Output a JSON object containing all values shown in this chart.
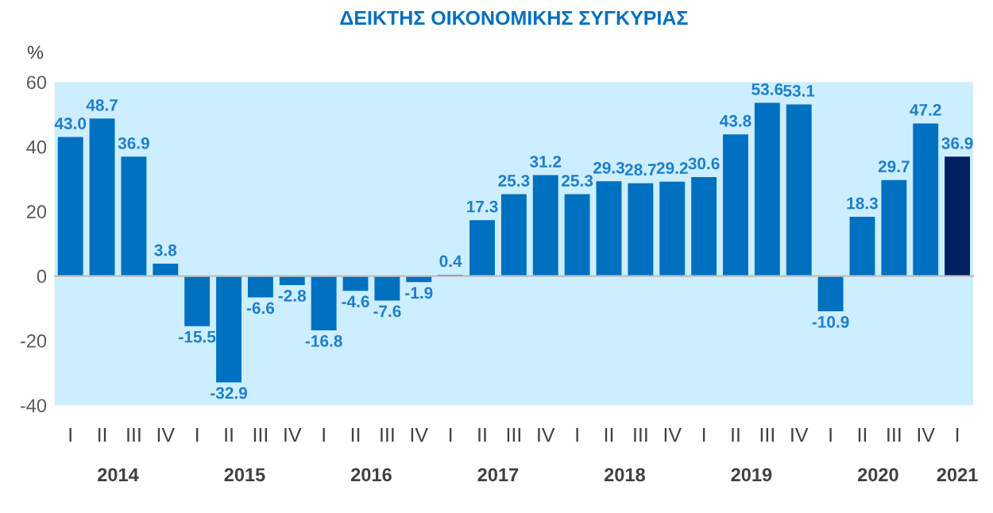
{
  "chart_data": {
    "type": "bar",
    "title": "ΔΕΙΚΤΗΣ ΟΙΚΟΝΟΜΙΚΗΣ ΣΥΓΚΥΡΙΑΣ",
    "ylabel": "%",
    "categories": [
      "I",
      "II",
      "III",
      "IV",
      "I",
      "II",
      "III",
      "IV",
      "I",
      "II",
      "III",
      "IV",
      "I",
      "II",
      "III",
      "IV",
      "I",
      "II",
      "III",
      "IV",
      "I",
      "II",
      "III",
      "IV",
      "I",
      "II",
      "III",
      "IV",
      "I"
    ],
    "values": [
      43.0,
      48.7,
      36.9,
      3.8,
      -15.5,
      -32.9,
      -6.6,
      -2.8,
      -16.8,
      -4.6,
      -7.6,
      -1.9,
      0.4,
      17.3,
      25.3,
      31.2,
      25.3,
      29.3,
      28.7,
      29.2,
      30.6,
      43.8,
      53.6,
      53.1,
      -10.9,
      18.3,
      29.7,
      47.2,
      36.9
    ],
    "colors": [
      "#0070c0",
      "#0070c0",
      "#0070c0",
      "#0070c0",
      "#0070c0",
      "#0070c0",
      "#0070c0",
      "#0070c0",
      "#0070c0",
      "#0070c0",
      "#0070c0",
      "#0070c0",
      "#0070c0",
      "#0070c0",
      "#0070c0",
      "#0070c0",
      "#0070c0",
      "#0070c0",
      "#0070c0",
      "#0070c0",
      "#0070c0",
      "#0070c0",
      "#0070c0",
      "#0070c0",
      "#0070c0",
      "#0070c0",
      "#0070c0",
      "#0070c0",
      "#002060"
    ],
    "annotations": [
      "2014",
      "2015",
      "2016",
      "2017",
      "2018",
      "2019",
      "2020",
      "2021"
    ],
    "ylim": [
      -40,
      60
    ],
    "yticks": [
      -40,
      -20,
      0,
      20,
      40,
      60
    ],
    "value_labels": [
      "43.0",
      "48.7",
      "36.9",
      "3.8",
      "-15.5",
      "-32.9",
      "-6.6",
      "-2.8",
      "-16.8",
      "-4.6",
      "-7.6",
      "-1.9",
      "0.4",
      "17.3",
      "25.3",
      "31.2",
      "25.3",
      "29.3",
      "28.7",
      "29.2",
      "30.6",
      "43.8",
      "53.6",
      "53.1",
      "-10.9",
      "18.3",
      "29.7",
      "47.2",
      "36.9"
    ]
  }
}
